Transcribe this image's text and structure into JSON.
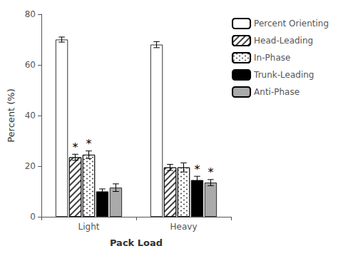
{
  "chart_data": {
    "type": "bar",
    "xlabel": "Pack Load",
    "ylabel": "Percent (%)",
    "categories": [
      "Light",
      "Heavy"
    ],
    "series": [
      {
        "name": "Percent Orienting",
        "color": "white",
        "values": [
          70.0,
          68.0
        ],
        "errors": [
          1.0,
          1.2
        ]
      },
      {
        "name": "Head-Leading",
        "color": "white",
        "values": [
          23.5,
          19.5
        ],
        "errors": [
          1.2,
          1.2
        ]
      },
      {
        "name": "In-Phase",
        "color": "white",
        "values": [
          24.5,
          19.5
        ],
        "errors": [
          1.5,
          1.8
        ]
      },
      {
        "name": "Trunk-Leading",
        "color": "black",
        "values": [
          10.0,
          14.5
        ],
        "errors": [
          1.0,
          1.5
        ]
      },
      {
        "name": "Anti-Phase",
        "color": "#aaaaaa",
        "values": [
          11.5,
          13.5
        ],
        "errors": [
          1.5,
          1.2
        ]
      }
    ],
    "annotations": [
      {
        "text": "*",
        "category": "Light",
        "series": "Head-Leading"
      },
      {
        "text": "*",
        "category": "Light",
        "series": "In-Phase"
      },
      {
        "text": "*",
        "category": "Heavy",
        "series": "Trunk-Leading"
      },
      {
        "text": "*",
        "category": "Heavy",
        "series": "Anti-Phase"
      }
    ],
    "ylim": [
      0,
      80
    ],
    "yticks": [
      0,
      20,
      40,
      60,
      80
    ],
    "grid": false,
    "legend": "upper right"
  }
}
